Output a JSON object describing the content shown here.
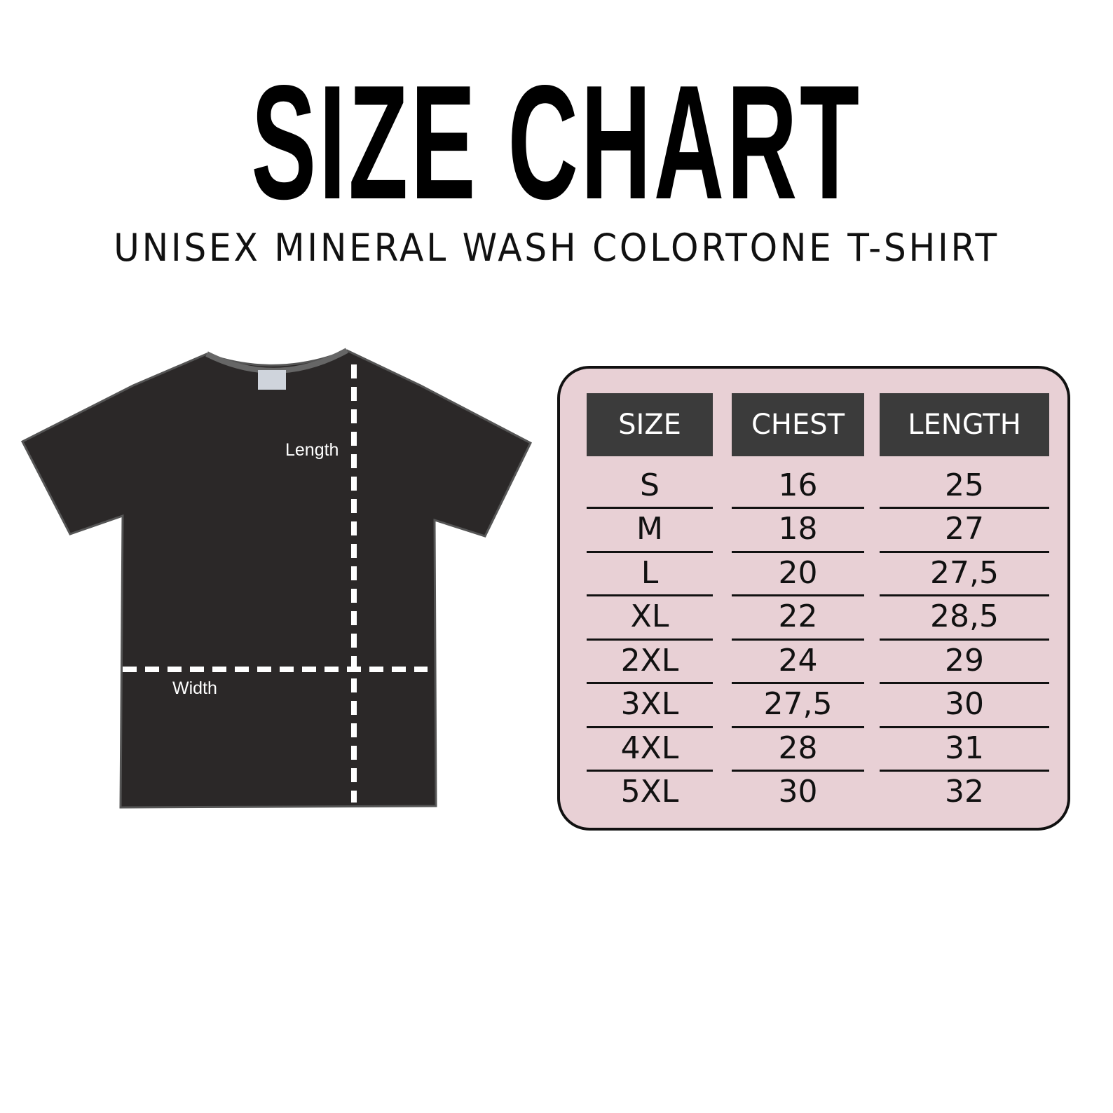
{
  "title": "SIZE CHART",
  "subtitle": "UNISEX MINERAL WASH COLORTONE T-SHIRT",
  "diagram": {
    "length_label": "Length",
    "width_label": "Width",
    "shirt_color": "#2b2828"
  },
  "table": {
    "background": "#e8d0d5",
    "header_color": "#3b3b3b",
    "headers": [
      "SIZE",
      "CHEST",
      "LENGTH"
    ],
    "rows": [
      [
        "S",
        "16",
        "25"
      ],
      [
        "M",
        "18",
        "27"
      ],
      [
        "L",
        "20",
        "27,5"
      ],
      [
        "XL",
        "22",
        "28,5"
      ],
      [
        "2XL",
        "24",
        "29"
      ],
      [
        "3XL",
        "27,5",
        "30"
      ],
      [
        "4XL",
        "28",
        "31"
      ],
      [
        "5XL",
        "30",
        "32"
      ]
    ]
  }
}
